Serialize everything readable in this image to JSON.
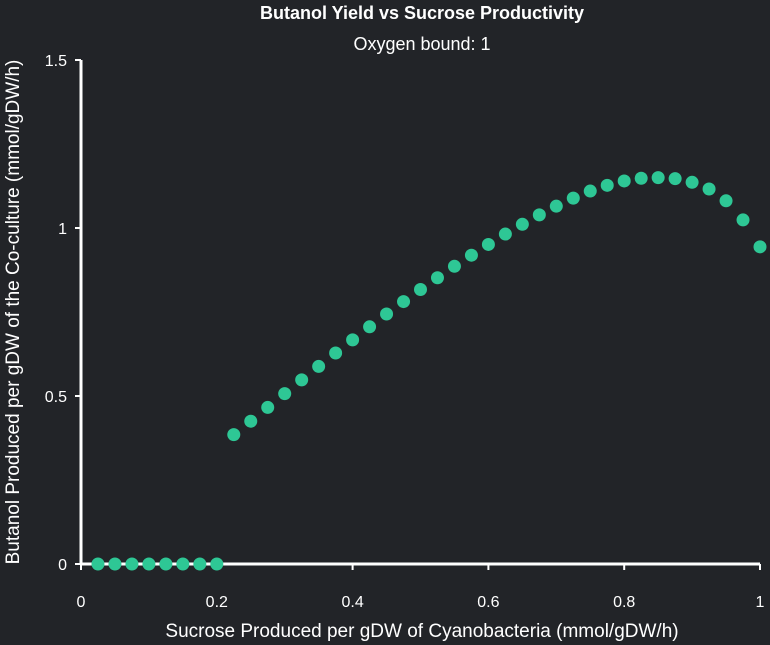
{
  "chart_data": {
    "type": "scatter",
    "title": "Butanol Yield vs Sucrose Productivity",
    "subtitle": "Oxygen bound: 1",
    "xlabel": "Sucrose Produced per gDW of Cyanobacteria (mmol/gDW/h)",
    "ylabel": "Butanol Produced per gDW of the Co-culture (mmol/gDW/h)",
    "xlim": [
      0,
      1
    ],
    "ylim": [
      0,
      1.5
    ],
    "xticks": [
      0,
      0.2,
      0.4,
      0.6,
      0.8,
      1
    ],
    "xtick_labels": [
      "0",
      "0.2",
      "0.4",
      "0.6",
      "0.8",
      "1"
    ],
    "yticks": [
      0,
      0.5,
      1,
      1.5
    ],
    "ytick_labels": [
      "0",
      "0.5",
      "1",
      "1.5"
    ],
    "grid": false,
    "marker_color": "#2ec795",
    "series": [
      {
        "x": [
          0.025,
          0.05,
          0.075,
          0.1,
          0.125,
          0.15,
          0.175,
          0.2,
          0.225,
          0.25,
          0.275,
          0.3,
          0.325,
          0.35,
          0.375,
          0.4,
          0.425,
          0.45,
          0.475,
          0.5,
          0.525,
          0.55,
          0.575,
          0.6,
          0.625,
          0.65,
          0.675,
          0.7,
          0.725,
          0.75,
          0.775,
          0.8,
          0.825,
          0.85,
          0.875,
          0.9,
          0.925,
          0.95,
          0.975,
          1.0
        ],
        "y": [
          0,
          0,
          0,
          0,
          0,
          0,
          0,
          0,
          0.385,
          0.425,
          0.466,
          0.507,
          0.548,
          0.588,
          0.628,
          0.667,
          0.706,
          0.744,
          0.781,
          0.817,
          0.852,
          0.886,
          0.919,
          0.951,
          0.982,
          1.011,
          1.039,
          1.065,
          1.089,
          1.11,
          1.127,
          1.14,
          1.148,
          1.15,
          1.147,
          1.136,
          1.116,
          1.081,
          1.024,
          0.944
        ]
      }
    ]
  }
}
